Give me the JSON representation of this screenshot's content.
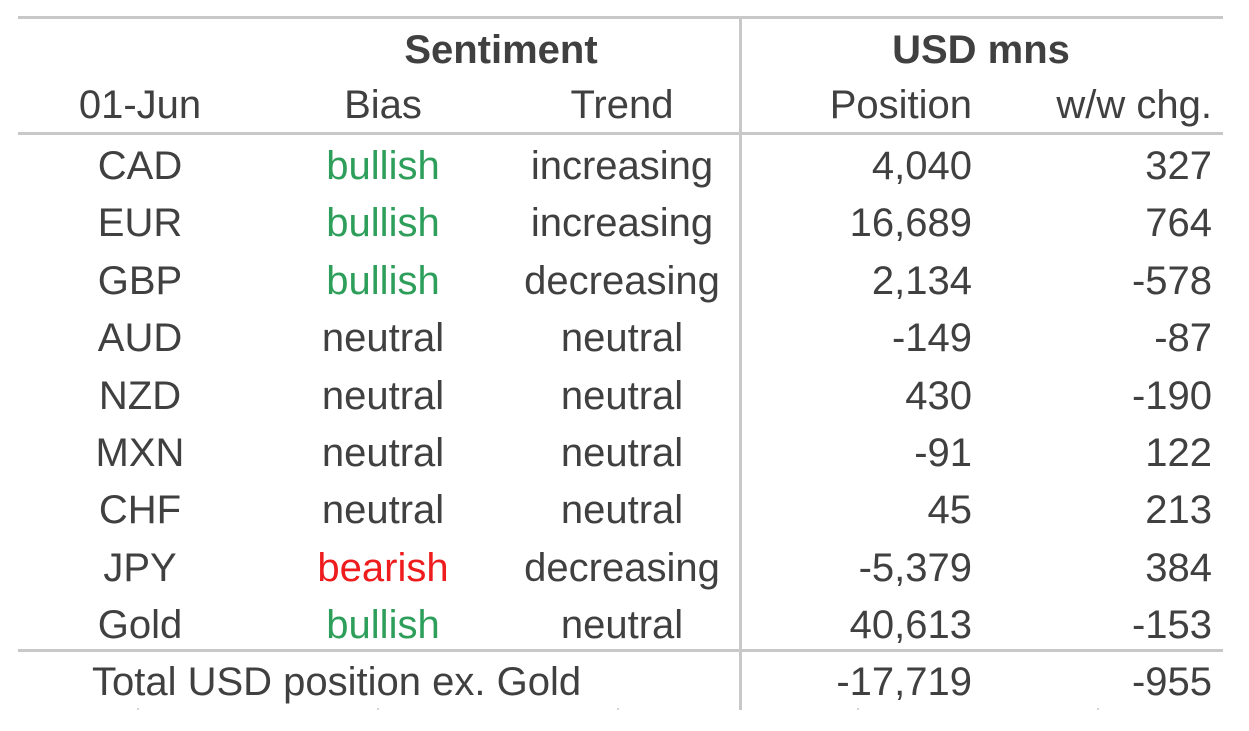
{
  "header": {
    "group_sentiment": "Sentiment",
    "group_usd": "USD mns",
    "col_date": "01-Jun",
    "col_bias": "Bias",
    "col_trend": "Trend",
    "col_position": "Position",
    "col_change": "w/w chg."
  },
  "rows": [
    {
      "code": "CAD",
      "bias": "bullish",
      "trend": "increasing",
      "position": "4,040",
      "change": "327"
    },
    {
      "code": "EUR",
      "bias": "bullish",
      "trend": "increasing",
      "position": "16,689",
      "change": "764"
    },
    {
      "code": "GBP",
      "bias": "bullish",
      "trend": "decreasing",
      "position": "2,134",
      "change": "-578"
    },
    {
      "code": "AUD",
      "bias": "neutral",
      "trend": "neutral",
      "position": "-149",
      "change": "-87"
    },
    {
      "code": "NZD",
      "bias": "neutral",
      "trend": "neutral",
      "position": "430",
      "change": "-190"
    },
    {
      "code": "MXN",
      "bias": "neutral",
      "trend": "neutral",
      "position": "-91",
      "change": "122"
    },
    {
      "code": "CHF",
      "bias": "neutral",
      "trend": "neutral",
      "position": "45",
      "change": "213"
    },
    {
      "code": "JPY",
      "bias": "bearish",
      "trend": "decreasing",
      "position": "-5,379",
      "change": "384"
    },
    {
      "code": "Gold",
      "bias": "bullish",
      "trend": "neutral",
      "position": "40,613",
      "change": "-153"
    }
  ],
  "total": {
    "label": "Total USD position ex. Gold",
    "position": "-17,719",
    "change": "-955"
  },
  "colors": {
    "bullish": "#2e9e5b",
    "bearish": "#ee1c1c",
    "neutral": "#404040",
    "rule": "#c8c8c8"
  }
}
